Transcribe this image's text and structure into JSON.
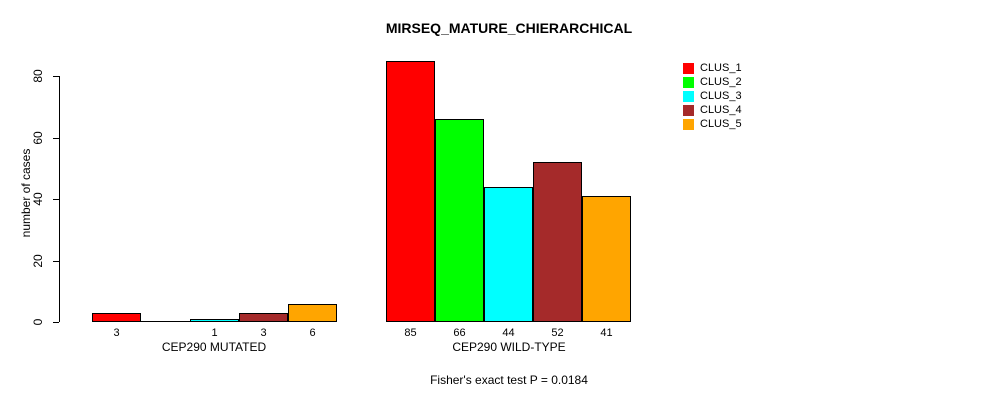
{
  "title": "MIRSEQ_MATURE_CHIERARCHICAL",
  "footnote": "Fisher's exact test P = 0.0184",
  "chart_data": {
    "type": "bar",
    "title": "MIRSEQ_MATURE_CHIERARCHICAL",
    "xlabel": "",
    "ylabel": "number of cases",
    "categories": [
      "CEP290 MUTATED",
      "CEP290 WILD-TYPE"
    ],
    "series": [
      {
        "name": "CLUS_1",
        "color": "#FF0000",
        "values": [
          3,
          85
        ]
      },
      {
        "name": "CLUS_2",
        "color": "#00FF00",
        "values": [
          0,
          66
        ]
      },
      {
        "name": "CLUS_3",
        "color": "#00FFFF",
        "values": [
          1,
          44
        ]
      },
      {
        "name": "CLUS_4",
        "color": "#A52A2A",
        "values": [
          3,
          52
        ]
      },
      {
        "name": "CLUS_5",
        "color": "#FFA500",
        "values": [
          6,
          41
        ]
      }
    ],
    "bar_value_labels": [
      [
        "3",
        "",
        "1",
        "3",
        "6"
      ],
      [
        "85",
        "66",
        "44",
        "52",
        "41"
      ]
    ],
    "yticks": [
      0,
      20,
      40,
      60,
      80
    ],
    "ylim": [
      0,
      85
    ],
    "grid": false,
    "legend_position": "top-right",
    "legend_entries": [
      "CLUS_1",
      "CLUS_2",
      "CLUS_3",
      "CLUS_4",
      "CLUS_5"
    ],
    "annotation": "Fisher's exact test P = 0.0184"
  }
}
